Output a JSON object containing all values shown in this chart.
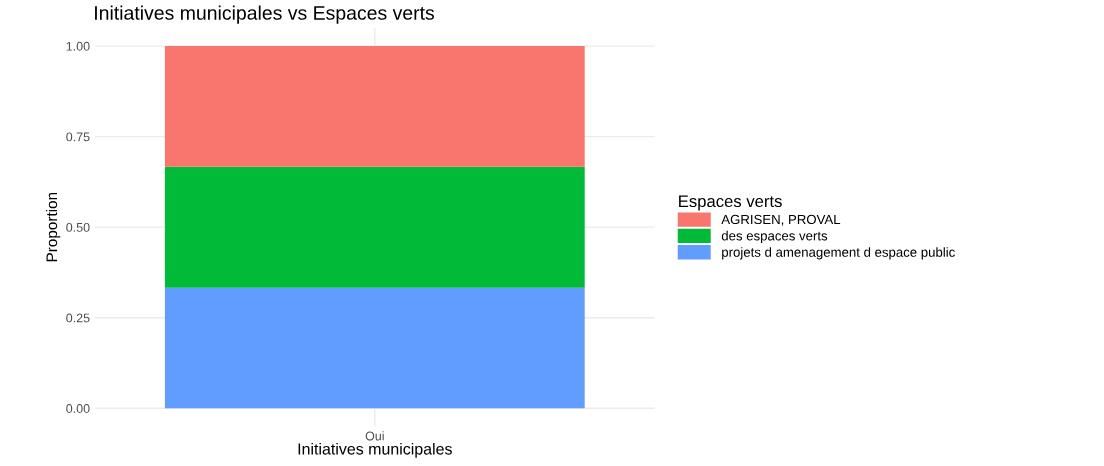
{
  "chart_data": {
    "type": "bar",
    "stacked": true,
    "title": "Initiatives municipales vs Espaces verts",
    "xlabel": "Initiatives municipales",
    "ylabel": "Proportion",
    "legend_title": "Espaces verts",
    "categories": [
      "Oui"
    ],
    "series": [
      {
        "name": "projets d amenagement d espace public",
        "color": "#619cff",
        "values": [
          0.333
        ]
      },
      {
        "name": "des espaces verts",
        "color": "#00ba38",
        "values": [
          0.334
        ]
      },
      {
        "name": "AGRISEN, PROVAL",
        "color": "#f8766d",
        "values": [
          0.333
        ]
      }
    ],
    "ylim": [
      -0.05,
      1.05
    ],
    "yticks": [
      {
        "value": 0,
        "label": "0.00"
      },
      {
        "value": 0.25,
        "label": "0.25"
      },
      {
        "value": 0.5,
        "label": "0.50"
      },
      {
        "value": 0.75,
        "label": "0.75"
      },
      {
        "value": 1,
        "label": "1.00"
      }
    ],
    "grid": true,
    "legend": "right"
  }
}
